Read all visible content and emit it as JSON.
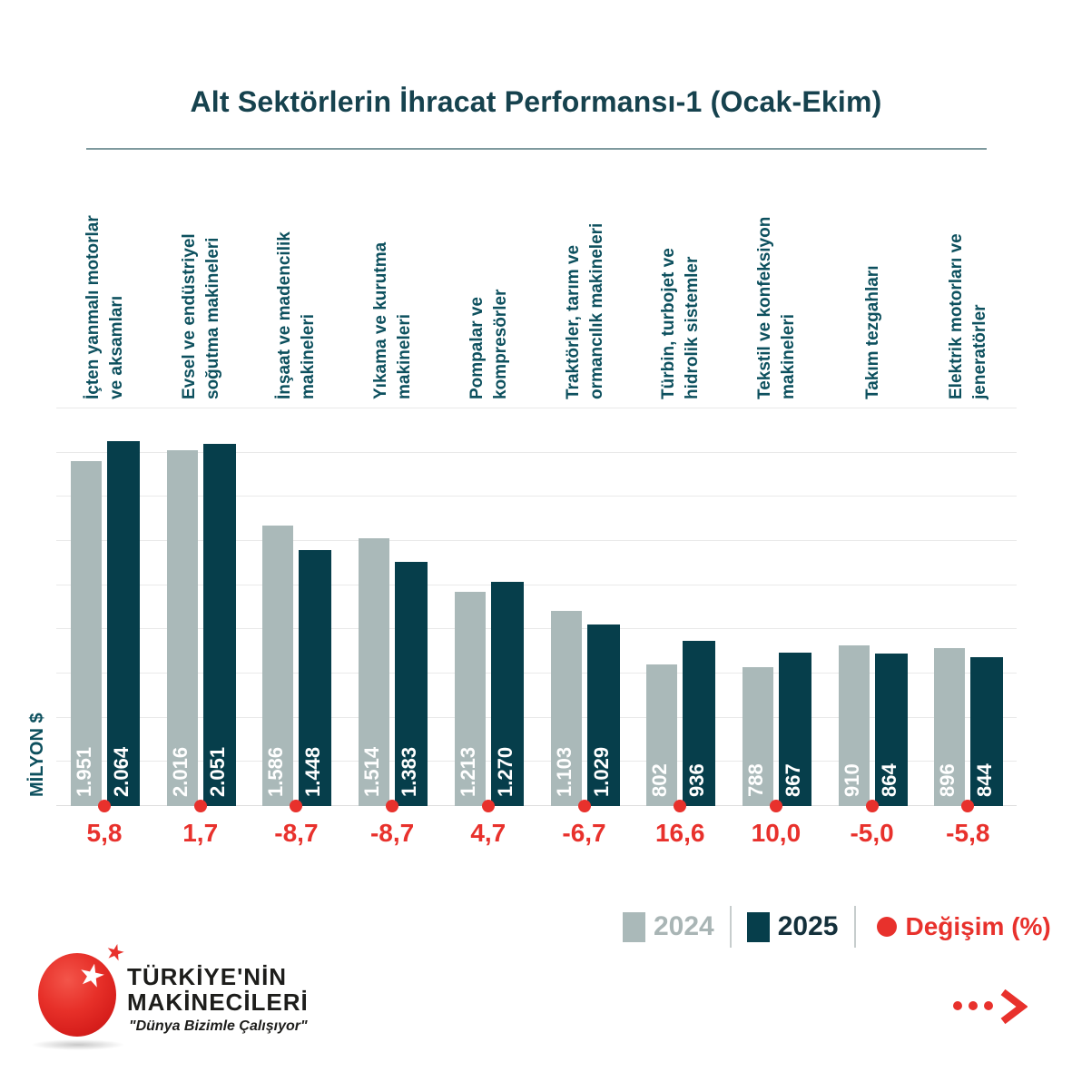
{
  "title": "Alt Sektörlerin İhracat Performansı-1 (Ocak-Ekim)",
  "legend": {
    "label_2024": "2024",
    "label_2025": "2025",
    "label_change": "Değişim (%)"
  },
  "footer": {
    "brand_line1": "TÜRKİYE'NİN",
    "brand_line2": "MAKİNECİLERİ",
    "slogan": "\"Dünya Bizimle Çalışıyor\"",
    "star_glyph": "★"
  },
  "colors": {
    "bar2024": "#aab9b9",
    "bar2025": "#063e4b",
    "red": "#e8312c",
    "category_text": "#0d505e",
    "title_text": "#16424e"
  },
  "chart_data": {
    "type": "bar",
    "title": "Alt Sektörlerin İhracat Performansı-1 (Ocak-Ekim)",
    "ylabel": "MİLYON $",
    "xlabel": "",
    "ylim": [
      0,
      2250
    ],
    "grid_step": 250,
    "grid": true,
    "legend_position": "bottom-right",
    "series_names": [
      "2024",
      "2025"
    ],
    "groups": [
      {
        "label_lines": [
          "İçten yanmalı motorlar",
          "ve aksamları"
        ],
        "v2024": 1951,
        "v2025": 2064,
        "d2024": "1.951",
        "d2025": "2.064",
        "change": "5,8"
      },
      {
        "label_lines": [
          "Evsel ve endüstriyel",
          "soğutma makineleri"
        ],
        "v2024": 2016,
        "v2025": 2051,
        "d2024": "2.016",
        "d2025": "2.051",
        "change": "1,7"
      },
      {
        "label_lines": [
          "İnşaat ve madencilik",
          "makineleri"
        ],
        "v2024": 1586,
        "v2025": 1448,
        "d2024": "1.586",
        "d2025": "1.448",
        "change": "-8,7"
      },
      {
        "label_lines": [
          "Yıkama ve kurutma",
          "makineleri"
        ],
        "v2024": 1514,
        "v2025": 1383,
        "d2024": "1.514",
        "d2025": "1.383",
        "change": "-8,7"
      },
      {
        "label_lines": [
          "Pompalar ve",
          "kompresörler"
        ],
        "v2024": 1213,
        "v2025": 1270,
        "d2024": "1.213",
        "d2025": "1.270",
        "change": "4,7"
      },
      {
        "label_lines": [
          "Traktörler, tarım ve",
          "ormancılık makineleri"
        ],
        "v2024": 1103,
        "v2025": 1029,
        "d2024": "1.103",
        "d2025": "1.029",
        "change": "-6,7"
      },
      {
        "label_lines": [
          "Türbin, turbojet ve",
          "hidrolik sistemler"
        ],
        "v2024": 802,
        "v2025": 936,
        "d2024": "802",
        "d2025": "936",
        "change": "16,6"
      },
      {
        "label_lines": [
          "Tekstil ve konfeksiyon",
          "makineleri"
        ],
        "v2024": 788,
        "v2025": 867,
        "d2024": "788",
        "d2025": "867",
        "change": "10,0"
      },
      {
        "label_lines": [
          "Takım tezgahları"
        ],
        "v2024": 910,
        "v2025": 864,
        "d2024": "910",
        "d2025": "864",
        "change": "-5,0"
      },
      {
        "label_lines": [
          "Elektrik motorları ve",
          "jeneratörler"
        ],
        "v2024": 896,
        "v2025": 844,
        "d2024": "896",
        "d2025": "844",
        "change": "-5,8"
      }
    ]
  }
}
